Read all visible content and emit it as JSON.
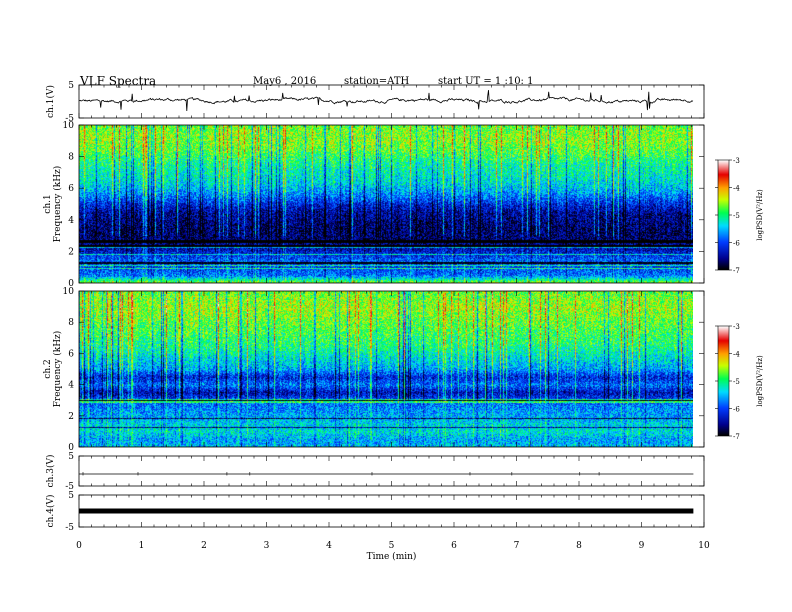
{
  "header": {
    "title": "VLF Spectra",
    "date": "May6 , 2016",
    "station": "station=ATH",
    "start_ut": "start UT = 1 :10: 1"
  },
  "chart_data": {
    "type": "heatmap",
    "xlabel": "Time (min)",
    "x_ticks": [
      "0",
      "1",
      "2",
      "3",
      "4",
      "5",
      "6",
      "7",
      "8",
      "9",
      "10"
    ],
    "xlim": [
      0,
      10
    ],
    "data_end_min": 9.83,
    "panels": [
      {
        "id": "ch1_wave",
        "type": "line",
        "ylabel": "ch.1(V)",
        "yticks": [
          "5",
          "-5"
        ],
        "ylim": [
          -5,
          5
        ],
        "trace_level": 0.3
      },
      {
        "id": "ch1_spec",
        "type": "heatmap",
        "ylabel_top": "ch.1",
        "ylabel": "Frequency (kHz)",
        "yticks": [
          "0",
          "2",
          "4",
          "6",
          "8",
          "10"
        ],
        "ylim": [
          0,
          10
        ],
        "profile_khz": [
          0,
          0.5,
          1,
          1.5,
          2,
          2.5,
          3,
          3.5,
          4,
          4.5,
          5,
          5.5,
          6,
          6.5,
          7,
          7.5,
          8,
          8.5,
          9,
          9.5,
          10
        ],
        "profile_logpsd": [
          -4.5,
          -5.8,
          -6.0,
          -5.9,
          -6.3,
          -6.6,
          -6.7,
          -6.7,
          -6.6,
          -6.5,
          -6.2,
          -5.8,
          -5.5,
          -5.3,
          -5.2,
          -5.1,
          -4.9,
          -4.7,
          -4.6,
          -4.6,
          -4.7
        ]
      },
      {
        "id": "ch2_spec",
        "type": "heatmap",
        "ylabel_top": "ch.2",
        "ylabel": "Frequency (kHz)",
        "yticks": [
          "0",
          "2",
          "4",
          "6",
          "8",
          "10"
        ],
        "ylim": [
          0,
          10
        ],
        "profile_khz": [
          0,
          0.5,
          1,
          1.5,
          2,
          2.5,
          3,
          3.5,
          4,
          4.5,
          5,
          5.5,
          6,
          6.5,
          7,
          7.5,
          8,
          8.5,
          9,
          9.5,
          10
        ],
        "profile_logpsd": [
          -5.5,
          -5.6,
          -5.3,
          -5.4,
          -5.6,
          -5.7,
          -5.9,
          -6.4,
          -5.8,
          -6.2,
          -5.6,
          -5.4,
          -5.2,
          -5.0,
          -4.9,
          -4.8,
          -4.7,
          -4.6,
          -4.5,
          -4.6,
          -4.7
        ]
      },
      {
        "id": "ch3_wave",
        "type": "line",
        "ylabel": "ch.3(V)",
        "yticks": [
          "5",
          "-5"
        ],
        "ylim": [
          -5,
          5
        ],
        "trace_level": -1
      },
      {
        "id": "ch4_wave",
        "type": "line",
        "ylabel": "ch.4(V)",
        "yticks": [
          "5",
          "-5"
        ],
        "ylim": [
          -5,
          5
        ],
        "trace_level": 0
      }
    ],
    "colorbar": {
      "label": "logPSD(V²/Hz)",
      "ticks": [
        "-3",
        "-4",
        "-5",
        "-6",
        "-7"
      ],
      "range": [
        -7,
        -3
      ]
    }
  }
}
